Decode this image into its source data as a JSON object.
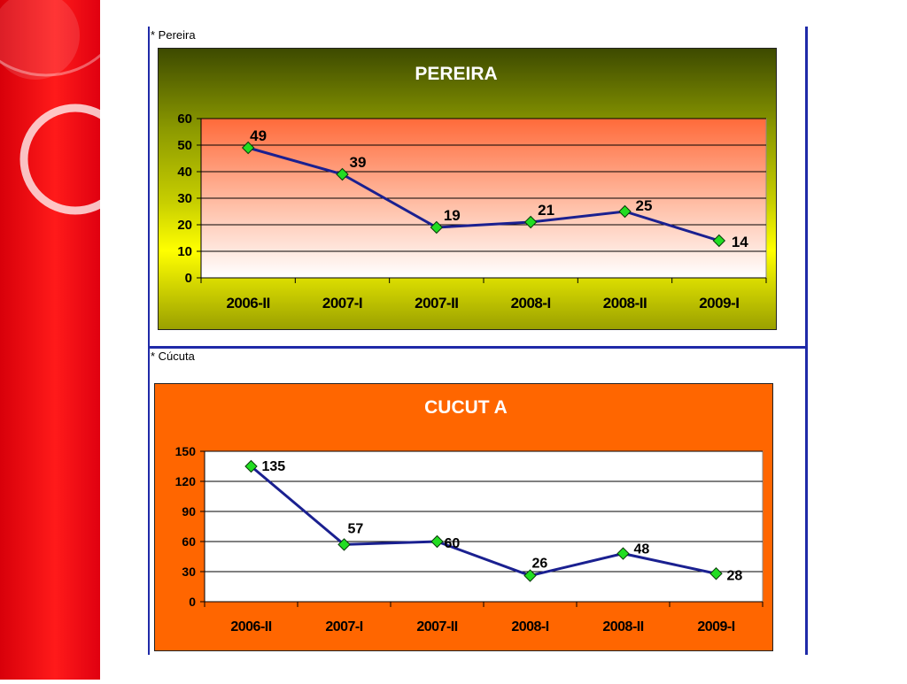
{
  "captions": {
    "pereira": "* Pereira",
    "cucuta": "* Cúcuta"
  },
  "colors": {
    "band": "#e00010",
    "frame_lines": "#1f2aa8",
    "series_line": "#1a2090",
    "marker": "#22dd22",
    "chart1_plot_top": "#ff6a3a",
    "chart2_bg": "#ff6600"
  },
  "chart_data": [
    {
      "type": "line",
      "title": "PEREIRA",
      "categories": [
        "2006-II",
        "2007-I",
        "2007-II",
        "2008-I",
        "2008-II",
        "2009-I"
      ],
      "values": [
        49,
        39,
        19,
        21,
        25,
        14
      ],
      "ylim": [
        0,
        60
      ],
      "yticks": [
        0,
        10,
        20,
        30,
        40,
        50,
        60
      ],
      "xlabel": "",
      "ylabel": "",
      "grid": true,
      "legend": "none"
    },
    {
      "type": "line",
      "title": "CUCUT A",
      "categories": [
        "2006-II",
        "2007-I",
        "2007-II",
        "2008-I",
        "2008-II",
        "2009-I"
      ],
      "values": [
        135,
        57,
        60,
        26,
        48,
        28
      ],
      "ylim": [
        0,
        150
      ],
      "yticks": [
        0,
        30,
        60,
        90,
        120,
        150
      ],
      "xlabel": "",
      "ylabel": "",
      "grid": true,
      "legend": "none"
    }
  ]
}
